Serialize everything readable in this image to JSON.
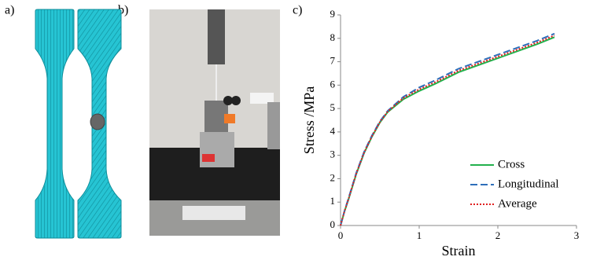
{
  "panel_labels": [
    "a)",
    "b)",
    "c)"
  ],
  "chart_data": {
    "type": "line",
    "xlabel": "Strain",
    "ylabel": "Stress /MPa",
    "x": [
      0,
      0.05,
      0.1,
      0.2,
      0.3,
      0.4,
      0.5,
      0.6,
      0.8,
      1.0,
      1.2,
      1.5,
      2.0,
      2.5,
      2.72
    ],
    "series": [
      {
        "name": "Cross",
        "color": "#22b14c",
        "style": "solid",
        "values": [
          0,
          0.6,
          1.1,
          2.2,
          3.1,
          3.8,
          4.4,
          4.85,
          5.4,
          5.75,
          6.05,
          6.55,
          7.15,
          7.75,
          8.05
        ]
      },
      {
        "name": "Longitudinal",
        "color": "#2e6fba",
        "style": "dashed",
        "values": [
          0,
          0.62,
          1.15,
          2.25,
          3.15,
          3.85,
          4.45,
          4.9,
          5.5,
          5.9,
          6.2,
          6.7,
          7.3,
          7.9,
          8.2
        ]
      },
      {
        "name": "Average",
        "color": "#e02020",
        "style": "dotted",
        "values": [
          0,
          0.61,
          1.12,
          2.22,
          3.12,
          3.82,
          4.42,
          4.87,
          5.45,
          5.82,
          6.12,
          6.62,
          7.22,
          7.82,
          8.12
        ]
      }
    ],
    "xlim": [
      0,
      3
    ],
    "xticks": [
      0,
      1,
      2,
      3
    ],
    "ylim": [
      0,
      9
    ],
    "yticks": [
      0,
      1,
      2,
      3,
      4,
      5,
      6,
      7,
      8,
      9
    ],
    "grid": false
  }
}
